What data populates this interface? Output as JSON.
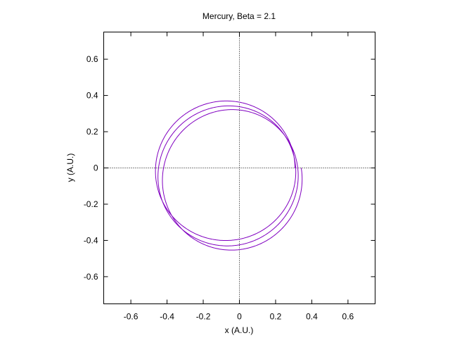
{
  "chart_data": {
    "type": "line",
    "title": "Mercury, Beta = 2.1",
    "xlabel": "x (A.U.)",
    "ylabel": "y (A.U.)",
    "xlim": [
      -0.75,
      0.75
    ],
    "ylim": [
      -0.75,
      0.75
    ],
    "xticks": [
      -0.6,
      -0.4,
      -0.2,
      0,
      0.2,
      0.4,
      0.6
    ],
    "yticks": [
      -0.6,
      -0.4,
      -0.2,
      0,
      0.2,
      0.4,
      0.6
    ],
    "xtick_labels": [
      "-0.6",
      "-0.4",
      "-0.2",
      "0",
      "0.2",
      "0.4",
      "0.6"
    ],
    "ytick_labels": [
      "-0.6",
      "-0.4",
      "-0.2",
      "0",
      "0.2",
      "0.4",
      "0.6"
    ],
    "zero_axes": "dotted",
    "grid": false,
    "legend": "none",
    "series": [
      {
        "color": "#8000c0",
        "orbit": {
          "semi_latus_rectum": 0.37,
          "eccentricity": 0.206,
          "perihelion_x": 0.307,
          "precession_deg_per_orbit": 22,
          "orbits": 3
        }
      }
    ]
  }
}
